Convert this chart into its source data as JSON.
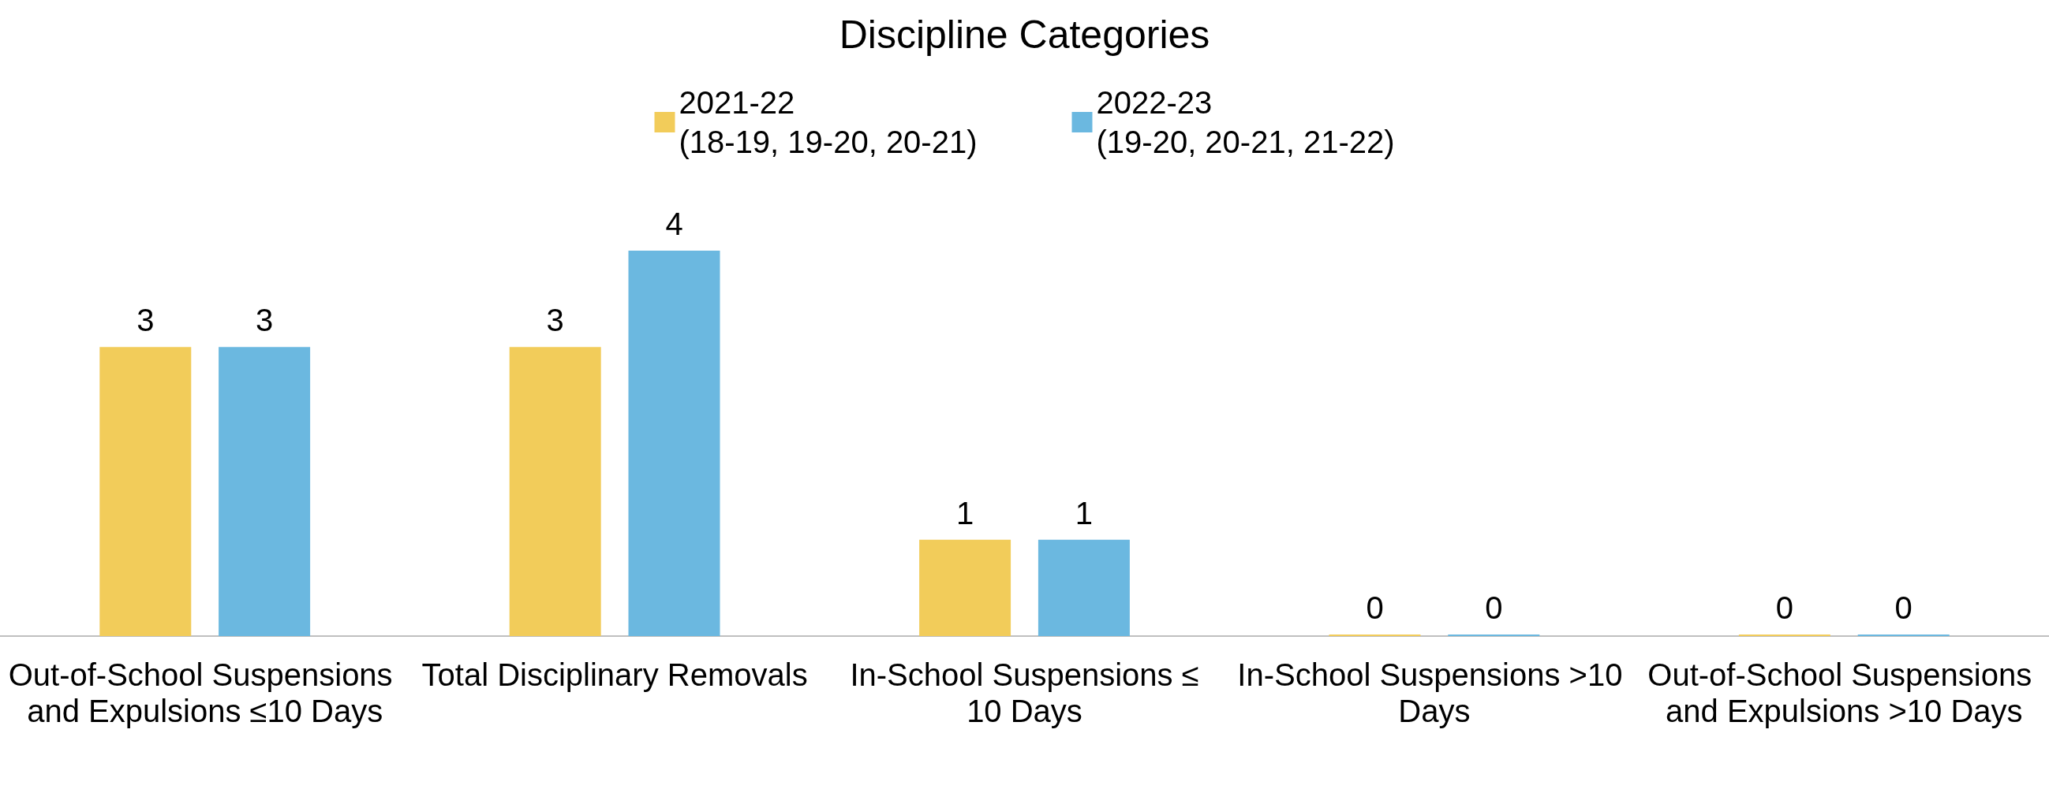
{
  "chart_data": {
    "type": "bar",
    "title": "Discipline Categories",
    "categories": [
      "Out-of-School Suspensions and Expulsions ≤10 Days",
      "Total Disciplinary Removals",
      "In-School Suspensions ≤10 Days",
      "In-School Suspensions >10 Days",
      "Out-of-School Suspensions and Expulsions >10 Days"
    ],
    "series": [
      {
        "name": "2021-22\n(18-19, 19-20, 20-21)",
        "color": "#f2cc5a",
        "values": [
          3,
          3,
          1,
          0,
          0
        ]
      },
      {
        "name": "2022-23\n(19-20, 20-21, 21-22)",
        "color": "#6bb8e0",
        "values": [
          3,
          4,
          1,
          0,
          0
        ]
      }
    ],
    "data_labels": true,
    "legend": "top",
    "grid": false,
    "tick_labels": "x"
  }
}
